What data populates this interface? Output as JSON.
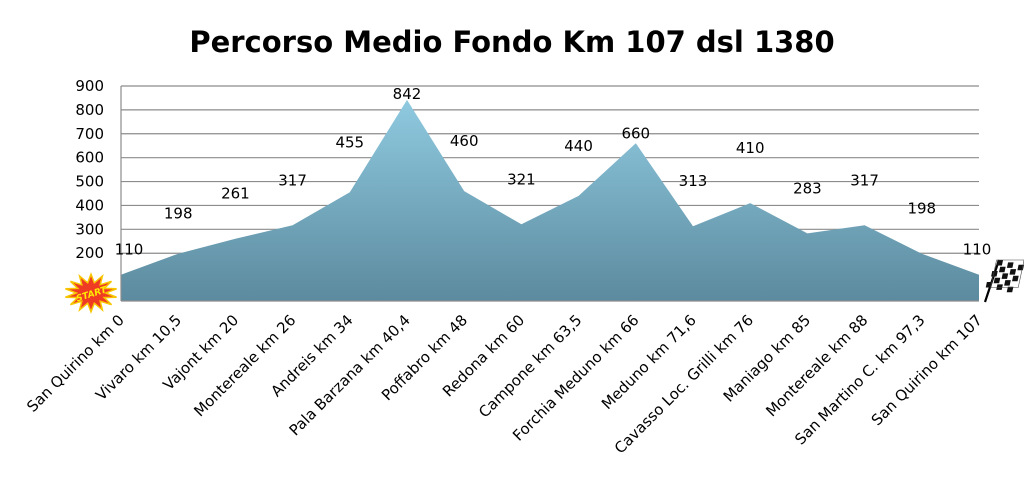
{
  "chart_data": {
    "type": "area",
    "title": "Percorso Medio Fondo Km 107 dsl 1380",
    "categories": [
      "San Quirino km 0",
      "Vivaro km 10,5",
      "Vajont km 20",
      "Montereale km 26",
      "Andreis km 34",
      "Pala Barzana km 40,4",
      "Poffabro km 48",
      "Redona km 60",
      "Campone km 63,5",
      "Forchia Meduno km 66",
      "Meduno km 71,6",
      "Cavasso Loc. Grilli km 76",
      "Maniago km 85",
      "Montereale km 88",
      "San Martino C. km 97,3",
      "San Quirino km 107"
    ],
    "values": [
      110,
      198,
      261,
      317,
      455,
      842,
      460,
      321,
      440,
      660,
      313,
      410,
      283,
      317,
      198,
      110
    ],
    "data_labels": [
      "110",
      "198",
      "261",
      "317",
      "455",
      "842",
      "460",
      "321",
      "440",
      "660",
      "313",
      "410",
      "283",
      "317",
      "198",
      "110"
    ],
    "yticks": [
      "200",
      "300",
      "400",
      "500",
      "600",
      "700",
      "800",
      "900"
    ],
    "ylim": [
      0,
      900
    ],
    "grid": true,
    "start_badge": "START",
    "colors": {
      "fill_top": "#8fcae0",
      "fill_bottom": "#5c8a9e",
      "grid": "#8c8c8c",
      "badge": "#ef3b23",
      "badge_text": "#ffea00"
    },
    "icons": [
      "start-burst-icon",
      "checkered-flag-icon"
    ]
  }
}
